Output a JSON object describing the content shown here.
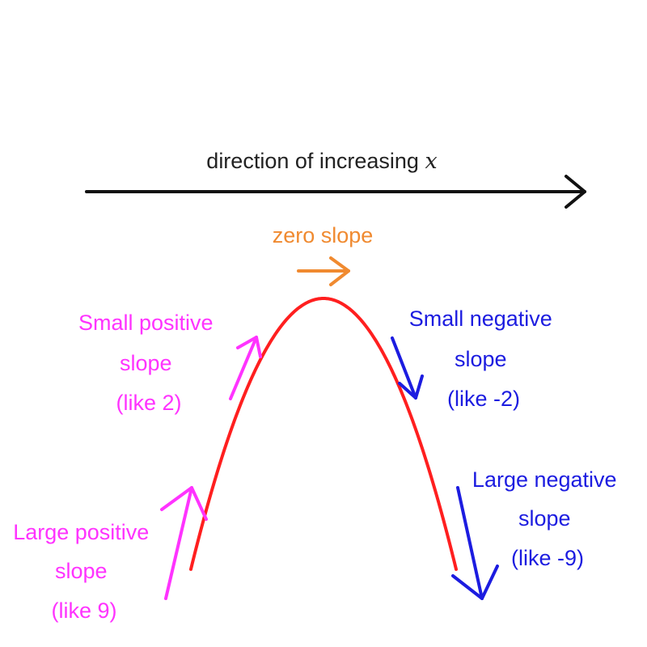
{
  "title": {
    "prefix": "direction of increasing ",
    "variable": "x"
  },
  "colors": {
    "axis": "#111111",
    "curve": "#ff1f1f",
    "zero": "#f08a30",
    "positive": "#ff33ff",
    "negative": "#1c1ce0"
  },
  "labels": {
    "zero": "zero slope",
    "small_positive": [
      "Small positive",
      "slope",
      "(like 2)"
    ],
    "large_positive": [
      "Large positive",
      "slope",
      "(like 9)"
    ],
    "small_negative": [
      "Small negative",
      "slope",
      "(like -2)"
    ],
    "large_negative": [
      "Large negative",
      "slope",
      "(like -9)"
    ]
  },
  "icons": {
    "axis_arrow": "arrow-right-icon",
    "zero_arrow": "arrow-right-icon",
    "small_positive_arrow": "arrow-up-right-icon",
    "large_positive_arrow": "arrow-up-icon",
    "small_negative_arrow": "arrow-down-right-icon",
    "large_negative_arrow": "arrow-down-icon"
  }
}
